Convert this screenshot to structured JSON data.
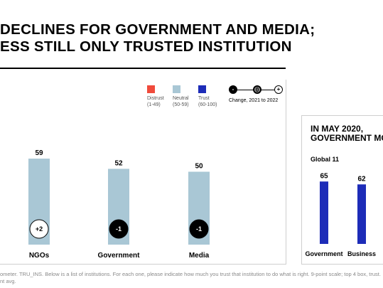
{
  "header": {
    "title_line1": "DECLINES FOR GOVERNMENT AND MEDIA;",
    "title_line2": "ESS STILL ONLY TRUSTED INSTITUTION"
  },
  "legend": {
    "distrust": {
      "label": "Distrust",
      "range": "(1-49)",
      "color": "#f04b3c"
    },
    "neutral": {
      "label": "Neutral",
      "range": "(50-59)",
      "color": "#a9c7d5"
    },
    "trust": {
      "label": "Trust",
      "range": "(60-100)",
      "color": "#1d2cb8"
    },
    "change": {
      "neg": "-",
      "zero": "0",
      "pos": "+",
      "label": "Change, 2021 to 2022"
    }
  },
  "chart_data": [
    {
      "type": "bar",
      "categories": [
        "NGOs",
        "Government",
        "Media"
      ],
      "values": [
        59,
        52,
        50
      ],
      "value_labels": [
        "59",
        "52",
        "50"
      ],
      "changes": [
        "+2",
        "-1",
        "-1"
      ],
      "color": "#a9c7d5",
      "ylim": [
        0,
        100
      ]
    },
    {
      "type": "bar",
      "title": "IN MAY 2020, GOVERNMENT MO",
      "subtitle": "Global 11",
      "categories": [
        "Government",
        "Business"
      ],
      "values": [
        65,
        62
      ],
      "value_labels": [
        "65",
        "62"
      ],
      "color": "#1d2cb8",
      "ylim": [
        0,
        100
      ]
    }
  ],
  "side": {
    "heading_line1": "IN MAY 2020,",
    "heading_line2": "GOVERNMENT MO",
    "subtitle": "Global 11"
  },
  "footnote": {
    "line1": "ometer. TRU_INS. Below is a list of institutions. For each one, please indicate how much you trust that institution to do what is right. 9-point scale; top 4 box, trust.",
    "line2": "nt avg."
  }
}
